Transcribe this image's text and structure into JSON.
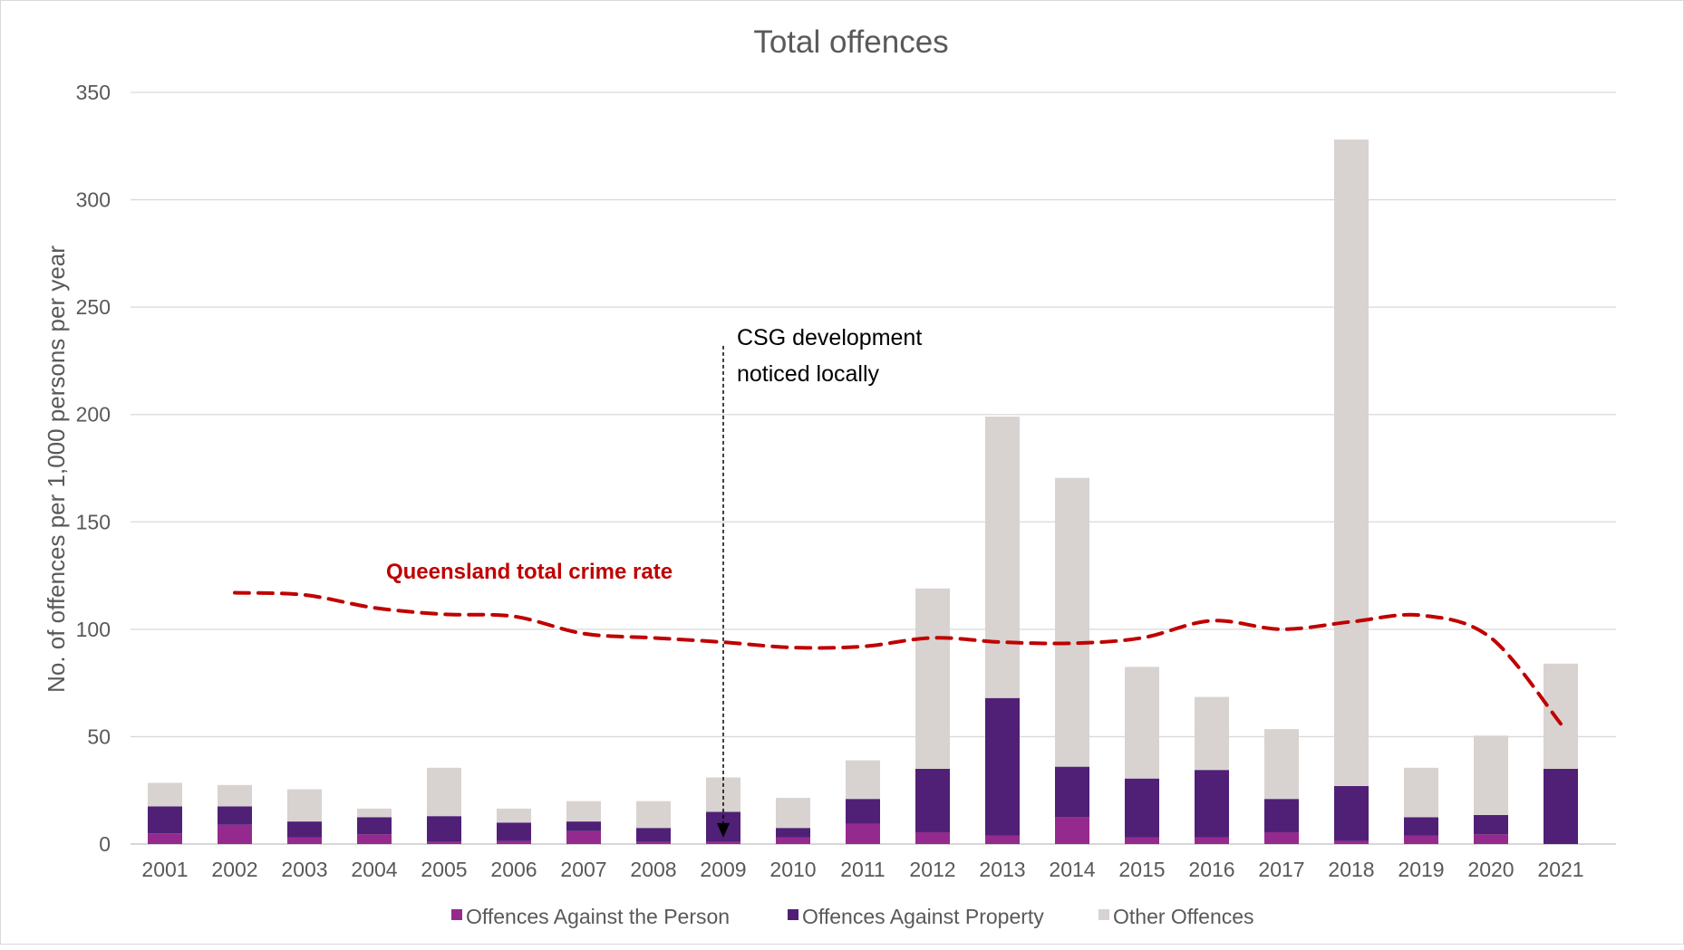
{
  "chart_data": {
    "type": "bar",
    "stacked": true,
    "title": "Total offences",
    "xlabel": "",
    "ylabel": "No. of offences per 1,000 persons per year",
    "ylim": [
      0,
      350
    ],
    "yticks": [
      0,
      50,
      100,
      150,
      200,
      250,
      300,
      350
    ],
    "grid": true,
    "legend_position": "bottom",
    "categories": [
      "2001",
      "2002",
      "2003",
      "2004",
      "2005",
      "2006",
      "2007",
      "2008",
      "2009",
      "2010",
      "2011",
      "2012",
      "2013",
      "2014",
      "2015",
      "2016",
      "2017",
      "2018",
      "2019",
      "2020",
      "2021"
    ],
    "series": [
      {
        "name": "Offences Against the Person",
        "color": "#952a8e",
        "values": [
          5,
          9,
          3,
          4.5,
          1,
          1.5,
          6,
          1,
          1,
          3,
          9.5,
          5.5,
          4,
          12.5,
          3,
          3,
          5.5,
          1.5,
          4,
          4.5,
          0
        ]
      },
      {
        "name": "Offences Against Property",
        "color": "#4f2076",
        "values": [
          12.5,
          8.5,
          7.5,
          8,
          12,
          8.5,
          4.5,
          6.5,
          14,
          4.5,
          11.5,
          29.5,
          64,
          23.5,
          27.5,
          31.5,
          15.5,
          25.5,
          8.5,
          9,
          35
        ]
      },
      {
        "name": "Other Offences",
        "color": "#d8d3d0",
        "values": [
          11,
          10,
          15,
          4,
          22.5,
          6.5,
          9.5,
          12.5,
          16,
          14,
          18,
          84,
          131,
          134.5,
          52,
          34,
          32.5,
          301,
          23,
          37,
          49
        ]
      }
    ],
    "reference_line": {
      "name": "Queensland total crime rate",
      "color": "#c00000",
      "style": "dashed",
      "categories": [
        "2002",
        "2003",
        "2004",
        "2005",
        "2006",
        "2007",
        "2008",
        "2009",
        "2010",
        "2011",
        "2012",
        "2013",
        "2014",
        "2015",
        "2016",
        "2017",
        "2018",
        "2019",
        "2020",
        "2021"
      ],
      "values": [
        117,
        116,
        110,
        107,
        106,
        98,
        96,
        94,
        91.5,
        92,
        96,
        94,
        93.5,
        96,
        104,
        100,
        103.5,
        106.5,
        96,
        56
      ]
    },
    "annotations": [
      {
        "type": "arrow",
        "category": "2009",
        "from_value": 232,
        "to_value": 3,
        "style": "dotted",
        "text_lines": [
          "CSG development",
          "noticed locally"
        ]
      }
    ]
  }
}
